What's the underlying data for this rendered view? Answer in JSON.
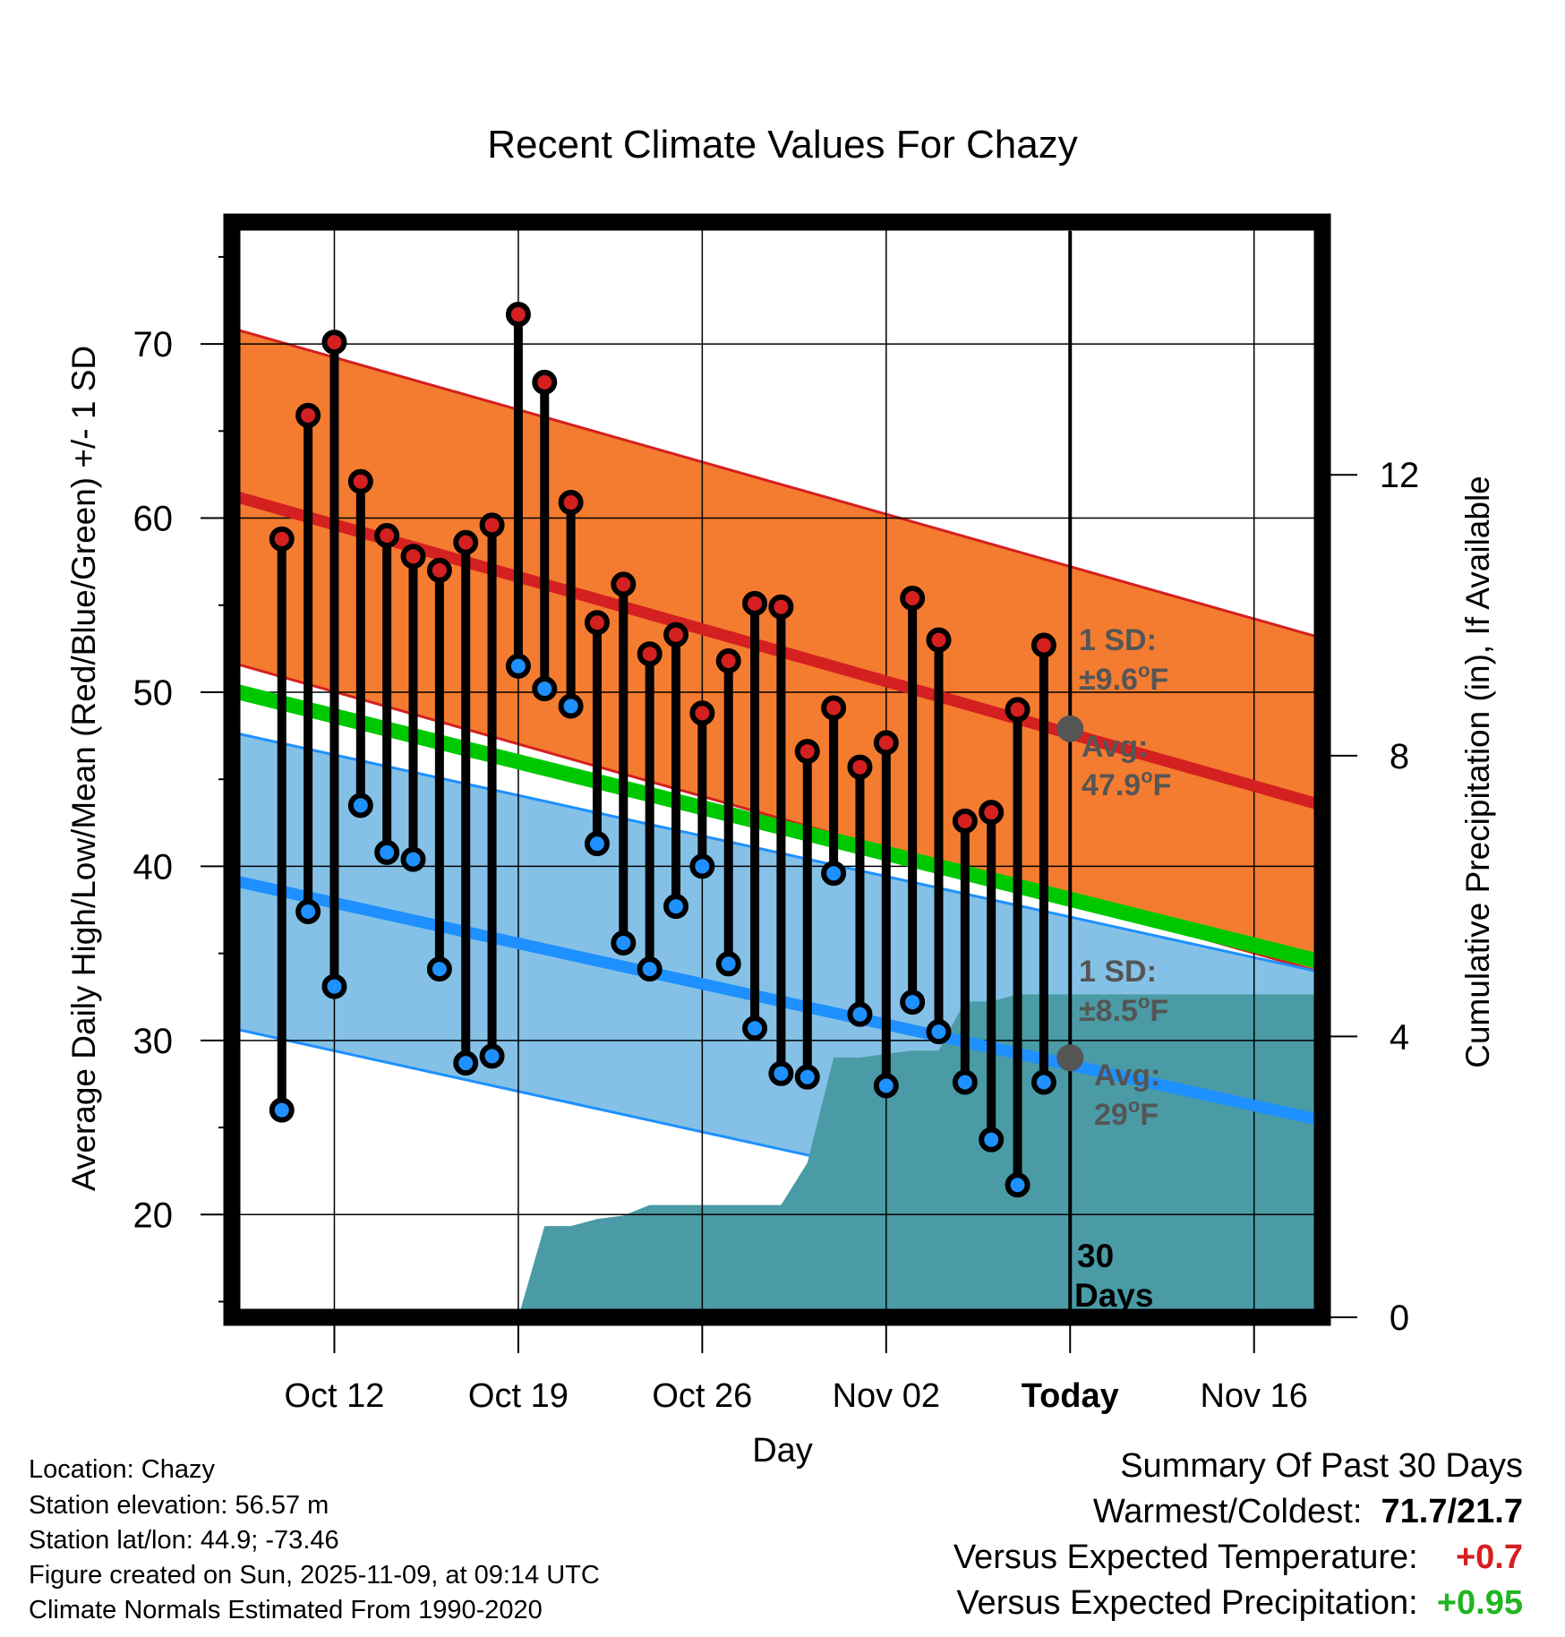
{
  "chart_data": {
    "type": "line",
    "title": "Recent Climate Values For Chazy",
    "xlabel": "Day",
    "ylabel": "Average Daily High/Low/Mean (Red/Blue/Green) +/- 1 SD",
    "ylabel_right": "Cumulative Precipitation (in), If Available",
    "x_ticks": [
      "Oct 12",
      "Oct 19",
      "Oct 26",
      "Nov 02",
      "Today",
      "Nov 16"
    ],
    "x_tick_days": [
      3,
      10,
      17,
      24,
      31,
      38
    ],
    "xlim": [
      -0.9,
      40.6
    ],
    "ylim": [
      14.1,
      77
    ],
    "y_ticks": [
      20,
      30,
      40,
      50,
      60,
      70
    ],
    "y2lim": [
      0,
      15.6
    ],
    "y2_ticks": [
      0,
      4,
      8,
      12
    ],
    "today_day": 31,
    "normals": {
      "high": {
        "day_start": -0.9,
        "day_end": 40.6,
        "mean_start": 61.3,
        "mean_end": 43.5,
        "sd": 9.6
      },
      "low": {
        "day_start": -0.9,
        "day_end": 40.6,
        "mean_start": 39.2,
        "mean_end": 25.4,
        "sd": 8.5
      },
      "mean": {
        "day_start": -0.9,
        "day_end": 40.6,
        "mean_start": 50.1,
        "mean_end": 34.5
      }
    },
    "series": [
      {
        "name": "Daily High",
        "color": "#d42020",
        "days": [
          1,
          2,
          3,
          4,
          5,
          6,
          7,
          8,
          9,
          10,
          11,
          12,
          13,
          14,
          15,
          16,
          17,
          18,
          19,
          20,
          21,
          22,
          23,
          24,
          25,
          26,
          27,
          28,
          29,
          30
        ],
        "values": [
          58.8,
          65.9,
          70.1,
          62.1,
          59.0,
          57.8,
          57.0,
          58.6,
          59.6,
          71.7,
          67.8,
          60.9,
          54.0,
          56.2,
          52.2,
          53.3,
          48.8,
          51.8,
          55.1,
          54.9,
          46.6,
          49.1,
          45.7,
          47.1,
          55.4,
          53.0,
          42.6,
          43.1,
          49.0,
          52.7
        ]
      },
      {
        "name": "Daily Low",
        "color": "#1e90ff",
        "days": [
          1,
          2,
          3,
          4,
          5,
          6,
          7,
          8,
          9,
          10,
          11,
          12,
          13,
          14,
          15,
          16,
          17,
          18,
          19,
          20,
          21,
          22,
          23,
          24,
          25,
          26,
          27,
          28,
          29,
          30
        ],
        "values": [
          26.0,
          37.4,
          33.1,
          43.5,
          40.8,
          40.4,
          34.1,
          28.7,
          29.1,
          51.5,
          50.2,
          49.2,
          41.3,
          35.6,
          34.1,
          37.7,
          40.0,
          34.4,
          30.7,
          28.1,
          27.9,
          39.6,
          31.5,
          27.4,
          32.2,
          30.5,
          27.6,
          24.3,
          21.7,
          27.6
        ]
      },
      {
        "name": "Cumulative Precipitation",
        "color": "#4a9ba5",
        "x": [
          10,
          11,
          12,
          13,
          14,
          15,
          16,
          17,
          18,
          19,
          20,
          21,
          22,
          23,
          24,
          25,
          26,
          27,
          28,
          29,
          30,
          31,
          32,
          33,
          34,
          35,
          36,
          37,
          38,
          39,
          40,
          40.6
        ],
        "values": [
          0,
          1.3,
          1.3,
          1.4,
          1.45,
          1.6,
          1.6,
          1.6,
          1.6,
          1.6,
          1.6,
          2.2,
          3.7,
          3.7,
          3.75,
          3.8,
          3.8,
          4.5,
          4.5,
          4.6,
          4.6,
          4.6,
          4.6,
          4.6,
          4.6,
          4.6,
          4.6,
          4.6,
          4.6,
          4.6,
          4.6,
          4.6
        ]
      }
    ],
    "annotations": {
      "high_sd_label": "1 SD:",
      "high_sd_value": "±9.6",
      "high_avg_label": "Avg:",
      "high_avg_value": "47.9",
      "high_avg_number": 47.9,
      "low_sd_label": "1 SD:",
      "low_sd_value": "±8.5",
      "low_avg_label": "Avg:",
      "low_avg_value": "29",
      "low_avg_number": 29,
      "degree_symbol": "o",
      "unit": "F",
      "days_count": "30",
      "days_word": "Days"
    }
  },
  "colors": {
    "high_band": "#f47c30",
    "high_line": "#d42020",
    "low_band": "#85c1e6",
    "low_line": "#1e90ff",
    "mean_line": "#00c800",
    "precip_fill": "#4a9ba5",
    "today_marker": "#555555",
    "annotation_text": "#555555",
    "warm_delta": "#d42020",
    "precip_delta": "#22b522"
  },
  "info": {
    "location": "Location: Chazy",
    "elevation": "Station elevation: 56.57 m",
    "latlon": "Station lat/lon: 44.9; -73.46",
    "created": "Figure created on Sun, 2025-11-09, at 09:14 UTC",
    "normals": "Climate Normals Estimated From 1990-2020"
  },
  "summary": {
    "title": "Summary Of Past 30 Days",
    "extremes_label": "Warmest/Coldest:",
    "extremes_value": "71.7/21.7",
    "temp_label": "Versus Expected Temperature:",
    "temp_value": "+0.7",
    "precip_label": "Versus Expected Precipitation:",
    "precip_value": "+0.95"
  }
}
